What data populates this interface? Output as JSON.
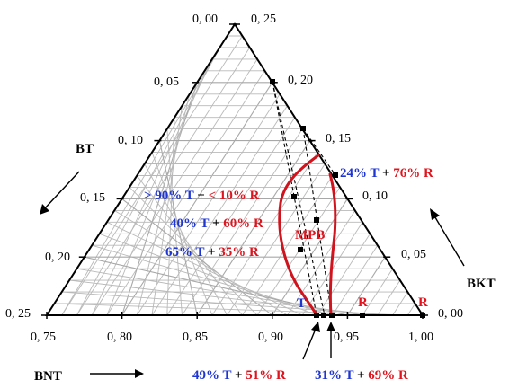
{
  "colors": {
    "blue": "#1f35d0",
    "red": "#e0141e",
    "phase_line": "#d0141e",
    "grid": "#b9b9b9"
  },
  "axes": {
    "bottom_ticks": [
      "0, 75",
      "0, 80",
      "0, 85",
      "0, 90",
      "0, 95",
      "1, 00"
    ],
    "left_ticks": [
      "0, 25",
      "0, 20",
      "0, 15",
      "0, 10",
      "0, 05",
      "0, 00"
    ],
    "right_ticks": [
      "0, 00",
      "0, 05",
      "0, 10",
      "0, 15",
      "0, 20",
      "0, 25"
    ],
    "bt_label": "BT",
    "bkt_label": "BKT",
    "bnt_label": "BNT"
  },
  "annotations": {
    "row1": {
      "a": "> 90% T",
      "plus": " + ",
      "b": "< 10% R"
    },
    "row2": {
      "a": "40% T",
      "plus": " + ",
      "b": "60% R"
    },
    "row3": {
      "a": "65% T",
      "plus": " + ",
      "b": "35% R"
    },
    "top_right": {
      "a": "24% T",
      "plus": " + ",
      "b": "76% R"
    },
    "mpb": "MPB",
    "t_marker": "T",
    "r_marker_1": "R",
    "r_marker_2": "R",
    "bottom_left": {
      "a": "49% T",
      "plus": " + ",
      "b": "51% R"
    },
    "bottom_right": {
      "a": "31% T",
      "plus": " + ",
      "b": "69% R"
    }
  }
}
